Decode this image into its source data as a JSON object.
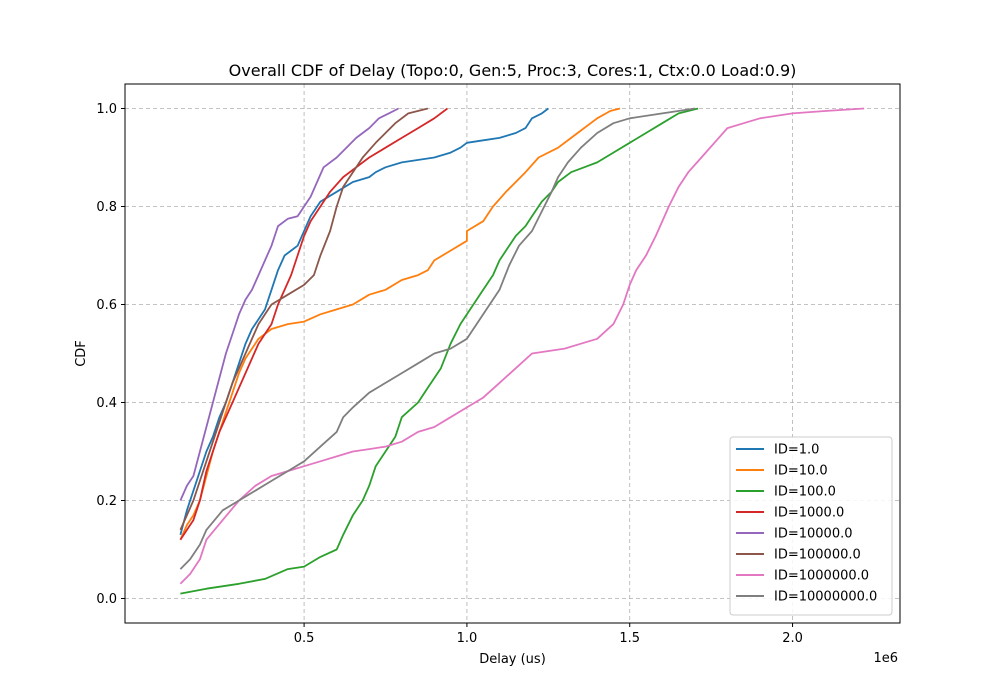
{
  "chart_data": {
    "type": "line",
    "title": "Overall CDF of Delay (Topo:0, Gen:5, Proc:3, Cores:1, Ctx:0.0 Load:0.9)",
    "xlabel": "Delay (us)",
    "ylabel": "CDF",
    "x_offset_label": "1e6",
    "x_scale": 1000000,
    "xlim": [
      -0.05,
      2.33
    ],
    "ylim": [
      -0.05,
      1.05
    ],
    "x_ticks": [
      0.5,
      1.0,
      1.5,
      2.0
    ],
    "x_tick_labels": [
      "0.5",
      "1.0",
      "1.5",
      "2.0"
    ],
    "y_ticks": [
      0.0,
      0.2,
      0.4,
      0.6,
      0.8,
      1.0
    ],
    "y_tick_labels": [
      "0.0",
      "0.2",
      "0.4",
      "0.6",
      "0.8",
      "1.0"
    ],
    "grid": true,
    "legend_position": "lower-right",
    "series": [
      {
        "name": "ID=1.0",
        "color": "#1f77b4",
        "points": [
          [
            0.12,
            0.13
          ],
          [
            0.14,
            0.18
          ],
          [
            0.16,
            0.22
          ],
          [
            0.18,
            0.26
          ],
          [
            0.2,
            0.3
          ],
          [
            0.22,
            0.33
          ],
          [
            0.24,
            0.37
          ],
          [
            0.26,
            0.4
          ],
          [
            0.28,
            0.44
          ],
          [
            0.3,
            0.48
          ],
          [
            0.32,
            0.52
          ],
          [
            0.34,
            0.55
          ],
          [
            0.36,
            0.57
          ],
          [
            0.38,
            0.59
          ],
          [
            0.4,
            0.63
          ],
          [
            0.42,
            0.67
          ],
          [
            0.44,
            0.7
          ],
          [
            0.46,
            0.71
          ],
          [
            0.48,
            0.72
          ],
          [
            0.5,
            0.75
          ],
          [
            0.52,
            0.78
          ],
          [
            0.55,
            0.81
          ],
          [
            0.6,
            0.83
          ],
          [
            0.65,
            0.85
          ],
          [
            0.7,
            0.86
          ],
          [
            0.72,
            0.87
          ],
          [
            0.75,
            0.88
          ],
          [
            0.8,
            0.89
          ],
          [
            0.9,
            0.9
          ],
          [
            0.95,
            0.91
          ],
          [
            0.98,
            0.92
          ],
          [
            1.0,
            0.93
          ],
          [
            1.05,
            0.935
          ],
          [
            1.1,
            0.94
          ],
          [
            1.15,
            0.95
          ],
          [
            1.18,
            0.96
          ],
          [
            1.2,
            0.98
          ],
          [
            1.23,
            0.99
          ],
          [
            1.25,
            1.0
          ]
        ]
      },
      {
        "name": "ID=10.0",
        "color": "#ff7f0e",
        "points": [
          [
            0.12,
            0.12
          ],
          [
            0.14,
            0.15
          ],
          [
            0.16,
            0.17
          ],
          [
            0.18,
            0.2
          ],
          [
            0.2,
            0.25
          ],
          [
            0.22,
            0.3
          ],
          [
            0.24,
            0.34
          ],
          [
            0.26,
            0.38
          ],
          [
            0.28,
            0.42
          ],
          [
            0.3,
            0.46
          ],
          [
            0.32,
            0.49
          ],
          [
            0.34,
            0.51
          ],
          [
            0.36,
            0.53
          ],
          [
            0.4,
            0.55
          ],
          [
            0.45,
            0.56
          ],
          [
            0.5,
            0.565
          ],
          [
            0.55,
            0.58
          ],
          [
            0.6,
            0.59
          ],
          [
            0.65,
            0.6
          ],
          [
            0.7,
            0.62
          ],
          [
            0.75,
            0.63
          ],
          [
            0.8,
            0.65
          ],
          [
            0.85,
            0.66
          ],
          [
            0.88,
            0.67
          ],
          [
            0.9,
            0.69
          ],
          [
            0.95,
            0.71
          ],
          [
            1.0,
            0.73
          ],
          [
            1.0,
            0.75
          ],
          [
            1.05,
            0.77
          ],
          [
            1.08,
            0.8
          ],
          [
            1.12,
            0.83
          ],
          [
            1.15,
            0.85
          ],
          [
            1.18,
            0.87
          ],
          [
            1.22,
            0.9
          ],
          [
            1.28,
            0.92
          ],
          [
            1.32,
            0.94
          ],
          [
            1.36,
            0.96
          ],
          [
            1.4,
            0.98
          ],
          [
            1.44,
            0.995
          ],
          [
            1.47,
            1.0
          ]
        ]
      },
      {
        "name": "ID=100.0",
        "color": "#2ca02c",
        "points": [
          [
            0.12,
            0.01
          ],
          [
            0.2,
            0.02
          ],
          [
            0.3,
            0.03
          ],
          [
            0.38,
            0.04
          ],
          [
            0.45,
            0.06
          ],
          [
            0.5,
            0.065
          ],
          [
            0.55,
            0.085
          ],
          [
            0.6,
            0.1
          ],
          [
            0.62,
            0.13
          ],
          [
            0.65,
            0.17
          ],
          [
            0.68,
            0.2
          ],
          [
            0.7,
            0.23
          ],
          [
            0.72,
            0.27
          ],
          [
            0.75,
            0.3
          ],
          [
            0.78,
            0.33
          ],
          [
            0.8,
            0.37
          ],
          [
            0.85,
            0.4
          ],
          [
            0.88,
            0.43
          ],
          [
            0.92,
            0.47
          ],
          [
            0.95,
            0.52
          ],
          [
            0.98,
            0.56
          ],
          [
            1.0,
            0.58
          ],
          [
            1.02,
            0.6
          ],
          [
            1.05,
            0.63
          ],
          [
            1.08,
            0.66
          ],
          [
            1.1,
            0.69
          ],
          [
            1.13,
            0.72
          ],
          [
            1.15,
            0.74
          ],
          [
            1.18,
            0.76
          ],
          [
            1.2,
            0.78
          ],
          [
            1.23,
            0.81
          ],
          [
            1.26,
            0.83
          ],
          [
            1.28,
            0.85
          ],
          [
            1.32,
            0.87
          ],
          [
            1.36,
            0.88
          ],
          [
            1.4,
            0.89
          ],
          [
            1.45,
            0.91
          ],
          [
            1.5,
            0.93
          ],
          [
            1.55,
            0.95
          ],
          [
            1.6,
            0.97
          ],
          [
            1.65,
            0.99
          ],
          [
            1.71,
            1.0
          ]
        ]
      },
      {
        "name": "ID=1000.0",
        "color": "#d62728",
        "points": [
          [
            0.12,
            0.12
          ],
          [
            0.14,
            0.14
          ],
          [
            0.16,
            0.16
          ],
          [
            0.18,
            0.2
          ],
          [
            0.2,
            0.26
          ],
          [
            0.22,
            0.3
          ],
          [
            0.24,
            0.34
          ],
          [
            0.26,
            0.37
          ],
          [
            0.28,
            0.4
          ],
          [
            0.3,
            0.43
          ],
          [
            0.32,
            0.46
          ],
          [
            0.34,
            0.49
          ],
          [
            0.36,
            0.52
          ],
          [
            0.38,
            0.54
          ],
          [
            0.4,
            0.56
          ],
          [
            0.42,
            0.6
          ],
          [
            0.44,
            0.63
          ],
          [
            0.46,
            0.66
          ],
          [
            0.48,
            0.7
          ],
          [
            0.5,
            0.74
          ],
          [
            0.52,
            0.77
          ],
          [
            0.55,
            0.8
          ],
          [
            0.58,
            0.83
          ],
          [
            0.62,
            0.86
          ],
          [
            0.66,
            0.88
          ],
          [
            0.7,
            0.9
          ],
          [
            0.75,
            0.92
          ],
          [
            0.8,
            0.94
          ],
          [
            0.85,
            0.96
          ],
          [
            0.9,
            0.98
          ],
          [
            0.94,
            1.0
          ]
        ]
      },
      {
        "name": "ID=10000.0",
        "color": "#9467bd",
        "points": [
          [
            0.12,
            0.2
          ],
          [
            0.14,
            0.23
          ],
          [
            0.16,
            0.25
          ],
          [
            0.18,
            0.3
          ],
          [
            0.2,
            0.35
          ],
          [
            0.22,
            0.4
          ],
          [
            0.24,
            0.45
          ],
          [
            0.26,
            0.5
          ],
          [
            0.28,
            0.54
          ],
          [
            0.3,
            0.58
          ],
          [
            0.32,
            0.61
          ],
          [
            0.34,
            0.63
          ],
          [
            0.36,
            0.66
          ],
          [
            0.38,
            0.69
          ],
          [
            0.4,
            0.72
          ],
          [
            0.42,
            0.76
          ],
          [
            0.45,
            0.775
          ],
          [
            0.48,
            0.78
          ],
          [
            0.5,
            0.8
          ],
          [
            0.52,
            0.82
          ],
          [
            0.54,
            0.85
          ],
          [
            0.56,
            0.88
          ],
          [
            0.6,
            0.9
          ],
          [
            0.63,
            0.92
          ],
          [
            0.66,
            0.94
          ],
          [
            0.7,
            0.96
          ],
          [
            0.73,
            0.98
          ],
          [
            0.76,
            0.99
          ],
          [
            0.79,
            1.0
          ]
        ]
      },
      {
        "name": "ID=100000.0",
        "color": "#8c564b",
        "points": [
          [
            0.12,
            0.14
          ],
          [
            0.14,
            0.17
          ],
          [
            0.16,
            0.2
          ],
          [
            0.18,
            0.24
          ],
          [
            0.2,
            0.28
          ],
          [
            0.22,
            0.32
          ],
          [
            0.24,
            0.36
          ],
          [
            0.26,
            0.4
          ],
          [
            0.28,
            0.44
          ],
          [
            0.3,
            0.47
          ],
          [
            0.32,
            0.5
          ],
          [
            0.34,
            0.53
          ],
          [
            0.36,
            0.56
          ],
          [
            0.38,
            0.58
          ],
          [
            0.4,
            0.6
          ],
          [
            0.45,
            0.62
          ],
          [
            0.5,
            0.64
          ],
          [
            0.53,
            0.66
          ],
          [
            0.55,
            0.7
          ],
          [
            0.58,
            0.75
          ],
          [
            0.6,
            0.8
          ],
          [
            0.62,
            0.84
          ],
          [
            0.65,
            0.87
          ],
          [
            0.68,
            0.9
          ],
          [
            0.72,
            0.93
          ],
          [
            0.75,
            0.95
          ],
          [
            0.78,
            0.97
          ],
          [
            0.82,
            0.99
          ],
          [
            0.88,
            1.0
          ]
        ]
      },
      {
        "name": "ID=1000000.0",
        "color": "#e377c2",
        "points": [
          [
            0.12,
            0.03
          ],
          [
            0.15,
            0.05
          ],
          [
            0.18,
            0.08
          ],
          [
            0.2,
            0.12
          ],
          [
            0.25,
            0.16
          ],
          [
            0.3,
            0.2
          ],
          [
            0.35,
            0.23
          ],
          [
            0.4,
            0.25
          ],
          [
            0.45,
            0.26
          ],
          [
            0.5,
            0.27
          ],
          [
            0.55,
            0.28
          ],
          [
            0.6,
            0.29
          ],
          [
            0.65,
            0.3
          ],
          [
            0.7,
            0.305
          ],
          [
            0.75,
            0.31
          ],
          [
            0.8,
            0.32
          ],
          [
            0.85,
            0.34
          ],
          [
            0.9,
            0.35
          ],
          [
            0.95,
            0.37
          ],
          [
            1.0,
            0.39
          ],
          [
            1.05,
            0.41
          ],
          [
            1.1,
            0.44
          ],
          [
            1.15,
            0.47
          ],
          [
            1.2,
            0.5
          ],
          [
            1.3,
            0.51
          ],
          [
            1.35,
            0.52
          ],
          [
            1.4,
            0.53
          ],
          [
            1.45,
            0.56
          ],
          [
            1.48,
            0.6
          ],
          [
            1.5,
            0.64
          ],
          [
            1.52,
            0.67
          ],
          [
            1.55,
            0.7
          ],
          [
            1.58,
            0.74
          ],
          [
            1.6,
            0.77
          ],
          [
            1.62,
            0.8
          ],
          [
            1.65,
            0.84
          ],
          [
            1.68,
            0.87
          ],
          [
            1.72,
            0.9
          ],
          [
            1.76,
            0.93
          ],
          [
            1.8,
            0.96
          ],
          [
            1.85,
            0.97
          ],
          [
            1.9,
            0.98
          ],
          [
            2.0,
            0.99
          ],
          [
            2.1,
            0.995
          ],
          [
            2.22,
            1.0
          ]
        ]
      },
      {
        "name": "ID=10000000.0",
        "color": "#7f7f7f",
        "points": [
          [
            0.12,
            0.06
          ],
          [
            0.15,
            0.08
          ],
          [
            0.18,
            0.11
          ],
          [
            0.2,
            0.14
          ],
          [
            0.25,
            0.18
          ],
          [
            0.3,
            0.2
          ],
          [
            0.35,
            0.22
          ],
          [
            0.4,
            0.24
          ],
          [
            0.45,
            0.26
          ],
          [
            0.5,
            0.28
          ],
          [
            0.55,
            0.31
          ],
          [
            0.6,
            0.34
          ],
          [
            0.62,
            0.37
          ],
          [
            0.65,
            0.39
          ],
          [
            0.7,
            0.42
          ],
          [
            0.75,
            0.44
          ],
          [
            0.8,
            0.46
          ],
          [
            0.85,
            0.48
          ],
          [
            0.9,
            0.5
          ],
          [
            0.95,
            0.51
          ],
          [
            1.0,
            0.53
          ],
          [
            1.05,
            0.58
          ],
          [
            1.1,
            0.63
          ],
          [
            1.13,
            0.68
          ],
          [
            1.16,
            0.72
          ],
          [
            1.2,
            0.75
          ],
          [
            1.23,
            0.79
          ],
          [
            1.26,
            0.83
          ],
          [
            1.28,
            0.86
          ],
          [
            1.31,
            0.89
          ],
          [
            1.35,
            0.92
          ],
          [
            1.4,
            0.95
          ],
          [
            1.45,
            0.97
          ],
          [
            1.5,
            0.98
          ],
          [
            1.6,
            0.99
          ],
          [
            1.7,
            1.0
          ]
        ]
      }
    ]
  }
}
